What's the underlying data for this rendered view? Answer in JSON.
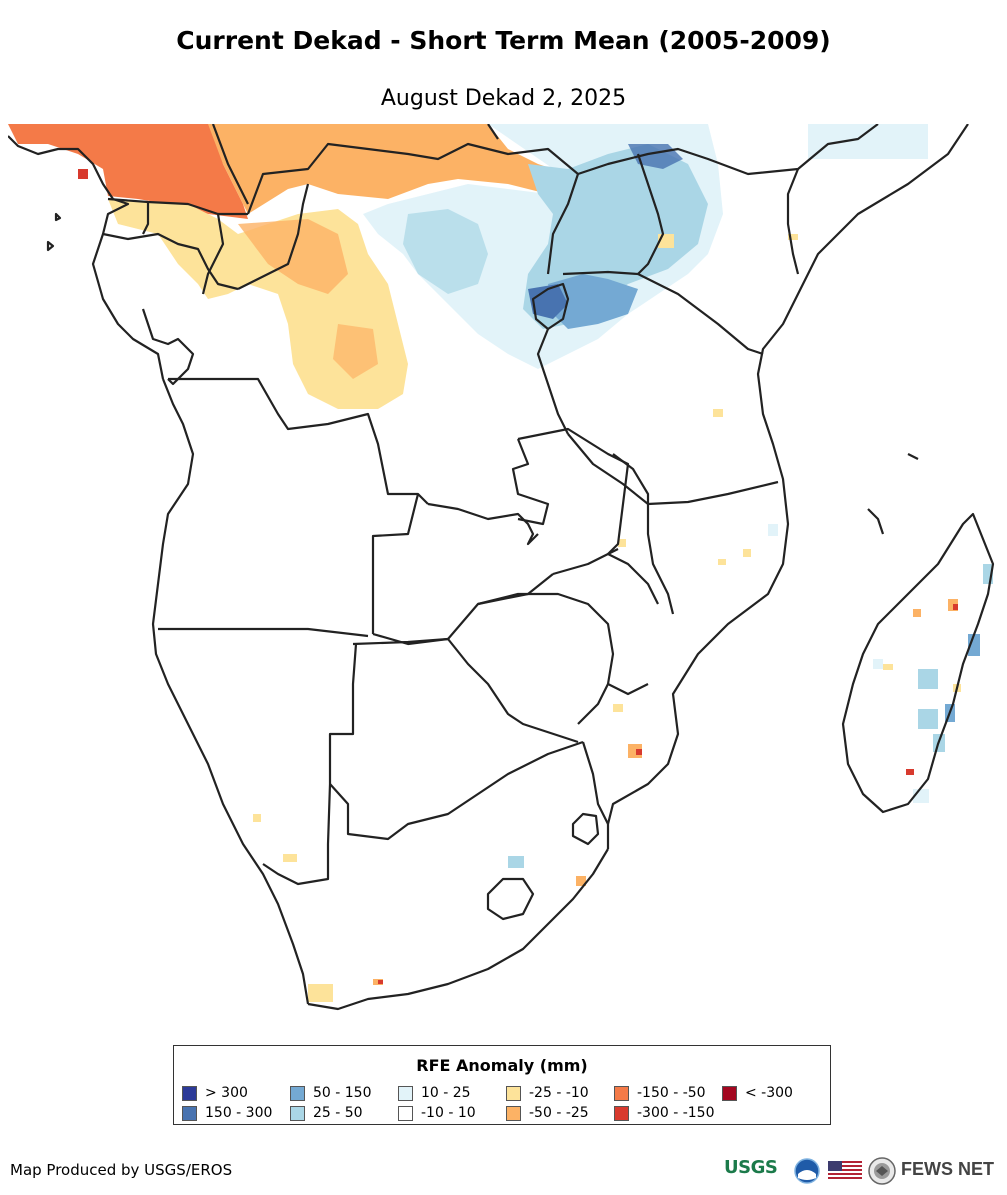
{
  "title": "Current Dekad - Short Term Mean (2005-2009)",
  "subtitle": "August Dekad 2, 2025",
  "legend": {
    "title": "RFE Anomaly (mm)",
    "items": [
      {
        "label": "> 300",
        "color": "#2c3a98"
      },
      {
        "label": "150 - 300",
        "color": "#4873b0"
      },
      {
        "label": "50 - 150",
        "color": "#74a9d3"
      },
      {
        "label": "25 - 50",
        "color": "#aad6e6"
      },
      {
        "label": "10 - 25",
        "color": "#e2f3f9"
      },
      {
        "label": "-10 - 10",
        "color": "#ffffff"
      },
      {
        "label": "-25 - -10",
        "color": "#fde39a"
      },
      {
        "label": "-50 - -25",
        "color": "#fcb265"
      },
      {
        "label": "-150 - -50",
        "color": "#f47a48"
      },
      {
        "label": "-300 - -150",
        "color": "#d83a2e"
      },
      {
        "label": "< -300",
        "color": "#a3061f"
      }
    ]
  },
  "credit": "Map Produced by USGS/EROS",
  "logos": {
    "usgs": "USGS",
    "fews": "FEWS NET",
    "icons": [
      "usgs-logo-icon",
      "noaa-logo-icon",
      "us-flag-icon",
      "state-department-seal-icon"
    ]
  }
}
